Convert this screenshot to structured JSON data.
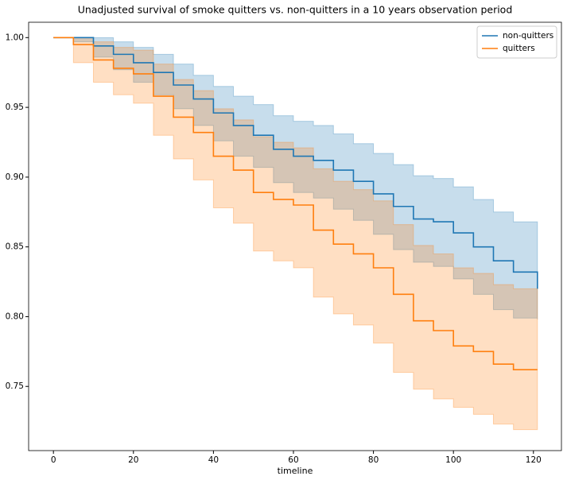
{
  "chart_data": {
    "type": "line",
    "drawstyle": "steps-post",
    "title": "Unadjusted survival of smoke quitters vs. non-quitters in a 10 years observation period",
    "xlabel": "timeline",
    "xlim": [
      -6.2,
      127
    ],
    "ylim": [
      0.704,
      1.011
    ],
    "xticks": [
      0,
      20,
      40,
      60,
      80,
      100,
      120
    ],
    "yticks": [
      {
        "value": 0.75,
        "label": "0.75"
      },
      {
        "value": 0.8,
        "label": "0.80"
      },
      {
        "value": 0.85,
        "label": "0.85"
      },
      {
        "value": 0.9,
        "label": "0.90"
      },
      {
        "value": 0.95,
        "label": "0.95"
      },
      {
        "value": 1.0,
        "label": "1.00"
      }
    ],
    "legend": "upper right",
    "series": [
      {
        "name": "non-quitters",
        "color": "#1f77b4",
        "x": [
          0,
          5,
          10,
          15,
          20,
          25,
          30,
          35,
          40,
          45,
          50,
          55,
          60,
          65,
          70,
          75,
          80,
          85,
          90,
          95,
          100,
          105,
          110,
          115,
          121
        ],
        "values": [
          1.0,
          1.0,
          0.994,
          0.988,
          0.982,
          0.975,
          0.966,
          0.956,
          0.946,
          0.937,
          0.93,
          0.92,
          0.915,
          0.912,
          0.905,
          0.897,
          0.888,
          0.879,
          0.87,
          0.868,
          0.86,
          0.85,
          0.84,
          0.832,
          0.82
        ],
        "upper": [
          1.0,
          1.0,
          1.0,
          0.997,
          0.993,
          0.988,
          0.981,
          0.973,
          0.965,
          0.958,
          0.952,
          0.944,
          0.94,
          0.937,
          0.931,
          0.924,
          0.917,
          0.909,
          0.901,
          0.899,
          0.893,
          0.884,
          0.875,
          0.868,
          0.841
        ],
        "lower": [
          1.0,
          0.997,
          0.986,
          0.977,
          0.968,
          0.959,
          0.949,
          0.937,
          0.926,
          0.915,
          0.907,
          0.896,
          0.889,
          0.885,
          0.877,
          0.869,
          0.859,
          0.848,
          0.839,
          0.836,
          0.827,
          0.816,
          0.805,
          0.799,
          0.798
        ]
      },
      {
        "name": "quitters",
        "color": "#ff7f0e",
        "x": [
          0,
          5,
          10,
          15,
          20,
          25,
          30,
          35,
          40,
          45,
          50,
          55,
          60,
          65,
          70,
          75,
          80,
          85,
          90,
          95,
          100,
          105,
          110,
          115,
          121
        ],
        "values": [
          1.0,
          0.995,
          0.984,
          0.978,
          0.974,
          0.958,
          0.943,
          0.932,
          0.915,
          0.905,
          0.889,
          0.884,
          0.88,
          0.862,
          0.852,
          0.845,
          0.835,
          0.816,
          0.797,
          0.79,
          0.779,
          0.775,
          0.766,
          0.762,
          0.762
        ],
        "upper": [
          1.0,
          1.0,
          0.997,
          0.993,
          0.991,
          0.981,
          0.97,
          0.962,
          0.949,
          0.941,
          0.929,
          0.925,
          0.921,
          0.906,
          0.897,
          0.891,
          0.883,
          0.866,
          0.851,
          0.845,
          0.835,
          0.831,
          0.823,
          0.82,
          0.797
        ],
        "lower": [
          1.0,
          0.982,
          0.968,
          0.959,
          0.953,
          0.93,
          0.913,
          0.898,
          0.878,
          0.867,
          0.847,
          0.84,
          0.835,
          0.814,
          0.802,
          0.794,
          0.781,
          0.76,
          0.748,
          0.741,
          0.735,
          0.73,
          0.723,
          0.719,
          0.719
        ]
      }
    ]
  }
}
